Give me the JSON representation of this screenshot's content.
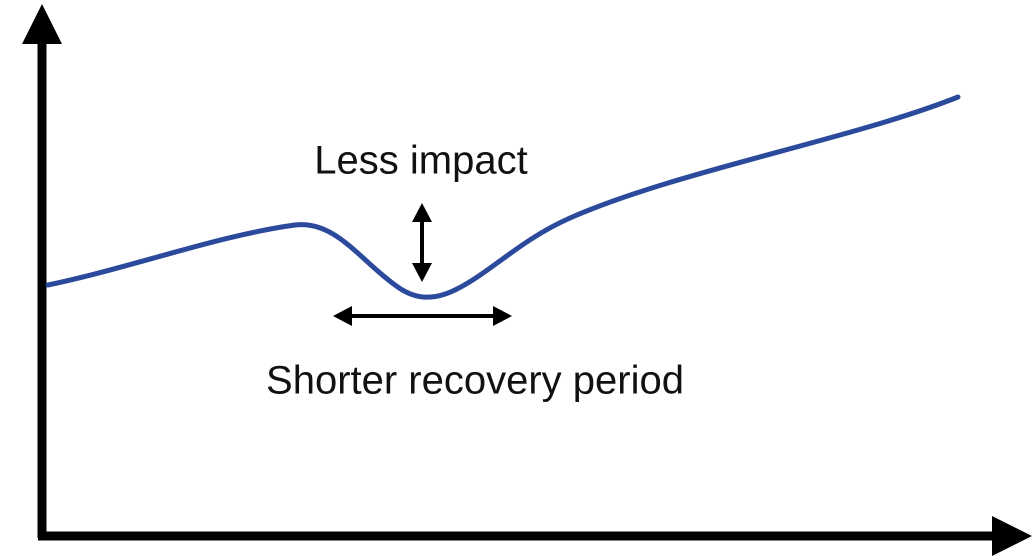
{
  "annotations": {
    "impact": "Less impact",
    "recovery": "Shorter recovery period"
  }
}
